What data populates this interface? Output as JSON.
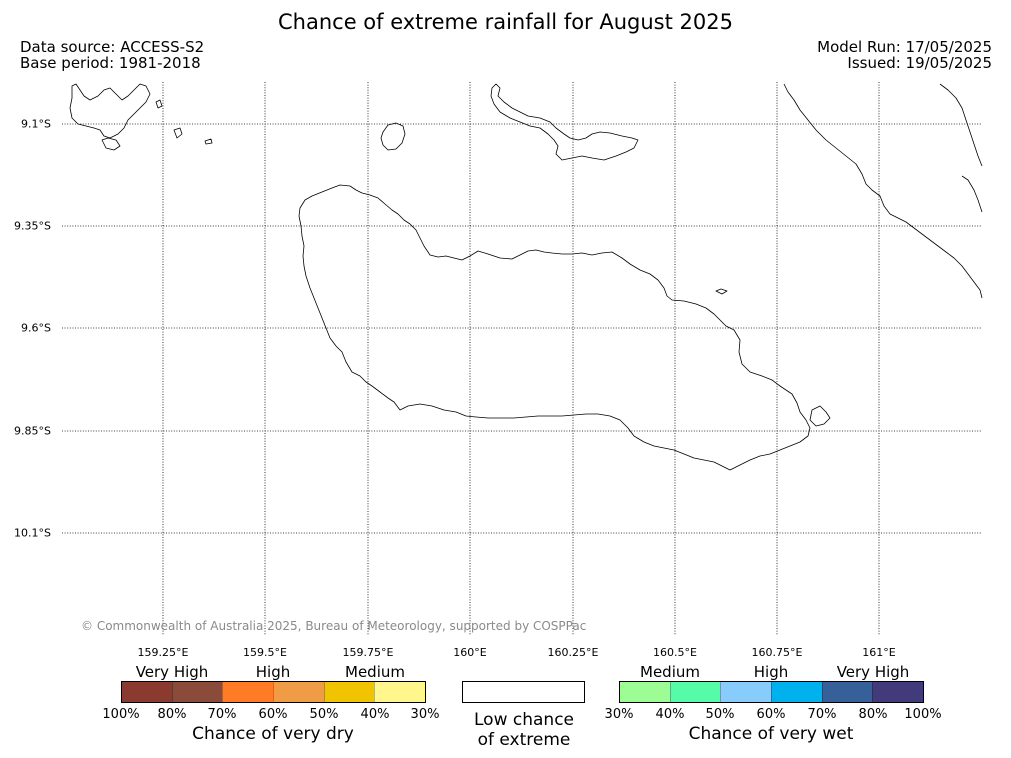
{
  "title": "Chance of extreme rainfall for August 2025",
  "header": {
    "data_source": "Data source: ACCESS-S2",
    "base_period": "Base period: 1981-2018",
    "model_run": "Model Run: 17/05/2025",
    "issued": "Issued: 19/05/2025"
  },
  "map": {
    "lat_labels": [
      "9.1°S",
      "9.35°S",
      "9.6°S",
      "9.85°S",
      "10.1°S"
    ],
    "lon_labels": [
      "159.25°E",
      "159.5°E",
      "159.75°E",
      "160°E",
      "160.25°E",
      "160.5°E",
      "160.75°E",
      "161°E"
    ],
    "copyright": "© Commonwealth of Australia 2025, Bureau of Meteorology, supported by COSPPac"
  },
  "legend": {
    "dry": {
      "categories": [
        "Very High",
        "High",
        "Medium"
      ],
      "ticks": [
        "100%",
        "80%",
        "70%",
        "60%",
        "50%",
        "40%",
        "30%"
      ],
      "colors": [
        "#8b3a2f",
        "#8b4b3a",
        "#ff7b26",
        "#f09c47",
        "#f0c400",
        "#fff68c"
      ],
      "title": "Chance of very dry"
    },
    "low": {
      "line1": "Low chance",
      "line2": "of extreme"
    },
    "wet": {
      "categories": [
        "Medium",
        "High",
        "Very High"
      ],
      "ticks": [
        "30%",
        "40%",
        "50%",
        "60%",
        "70%",
        "80%",
        "100%"
      ],
      "colors": [
        "#9efc94",
        "#55fba7",
        "#88ccfb",
        "#00b1ee",
        "#356099",
        "#413b7b"
      ],
      "title": "Chance of very wet"
    }
  }
}
